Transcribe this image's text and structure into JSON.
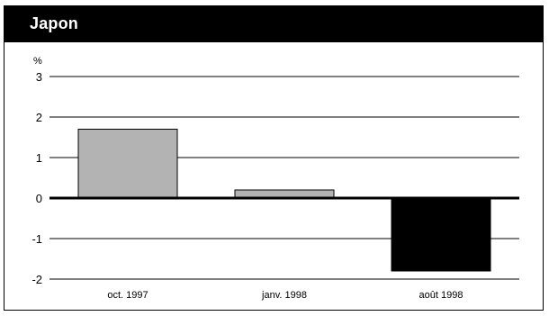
{
  "chart_data": {
    "type": "bar",
    "title": "Japon",
    "ylabel": "%",
    "xlabel": "",
    "categories": [
      "oct. 1997",
      "janv. 1998",
      "août 1998"
    ],
    "values": [
      1.7,
      0.2,
      -1.8
    ],
    "ylim": [
      -2,
      3
    ],
    "yticks": [
      "3",
      "2",
      "1",
      "0",
      "-1",
      "-2"
    ],
    "grid": true,
    "colors": {
      "positive": "#b3b3b3",
      "negative": "#000000",
      "background": "#ffffff",
      "title_bar": "#000000"
    }
  }
}
